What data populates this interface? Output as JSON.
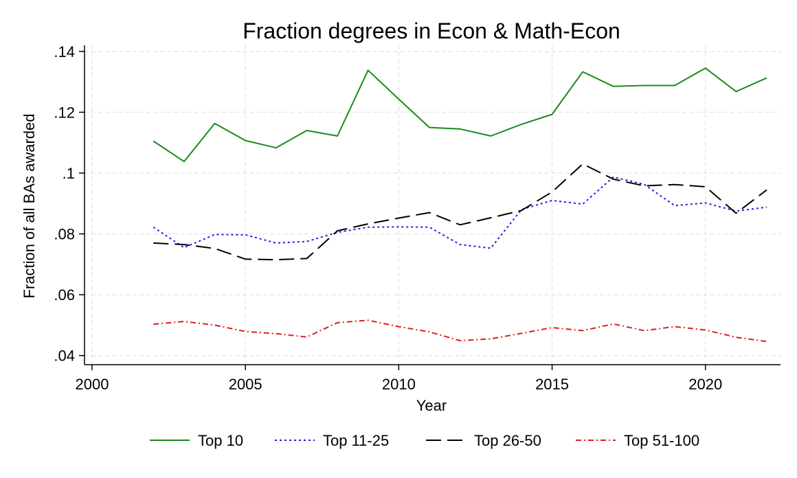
{
  "chart_data": {
    "type": "line",
    "title": "Fraction degrees in Econ & Math-Econ",
    "xlabel": "Year",
    "ylabel": "Fraction of all BAs awarded",
    "xlim": [
      2000,
      2022
    ],
    "ylim": [
      0.037,
      0.142
    ],
    "xticks": [
      {
        "value": 2000,
        "label": "2000"
      },
      {
        "value": 2005,
        "label": "2005"
      },
      {
        "value": 2010,
        "label": "2010"
      },
      {
        "value": 2015,
        "label": "2015"
      },
      {
        "value": 2020,
        "label": "2020"
      }
    ],
    "yticks": [
      {
        "value": 0.04,
        "label": ".04"
      },
      {
        "value": 0.06,
        "label": ".06"
      },
      {
        "value": 0.08,
        "label": ".08"
      },
      {
        "value": 0.1,
        "label": ".1"
      },
      {
        "value": 0.12,
        "label": ".12"
      },
      {
        "value": 0.14,
        "label": ".14"
      }
    ],
    "grid": true,
    "legend_position": "bottom",
    "x": [
      2002,
      2003,
      2004,
      2005,
      2006,
      2007,
      2008,
      2009,
      2010,
      2011,
      2012,
      2013,
      2014,
      2015,
      2016,
      2017,
      2018,
      2019,
      2020,
      2021,
      2022
    ],
    "series": [
      {
        "name": "Top 10",
        "color": "#1a8a1a",
        "dash": "solid",
        "values": [
          0.1105,
          0.1038,
          0.1163,
          0.1107,
          0.1083,
          0.114,
          0.1122,
          0.1338,
          0.1243,
          0.115,
          0.1145,
          0.1122,
          0.116,
          0.1193,
          0.1333,
          0.1285,
          0.1288,
          0.1288,
          0.1345,
          0.1268,
          0.1313
        ]
      },
      {
        "name": "Top 11-25",
        "color": "#1c1ce0",
        "dash": "dot",
        "values": [
          0.0822,
          0.0755,
          0.0798,
          0.0797,
          0.077,
          0.0775,
          0.0805,
          0.0822,
          0.0823,
          0.0822,
          0.0765,
          0.0753,
          0.088,
          0.091,
          0.0898,
          0.0987,
          0.0963,
          0.0893,
          0.0902,
          0.0875,
          0.0888
        ]
      },
      {
        "name": "Top 26-50",
        "color": "#000000",
        "dash": "longdash",
        "values": [
          0.077,
          0.0765,
          0.0752,
          0.0717,
          0.0715,
          0.0719,
          0.081,
          0.0833,
          0.0852,
          0.087,
          0.083,
          0.0853,
          0.0877,
          0.0938,
          0.103,
          0.098,
          0.0958,
          0.0962,
          0.0955,
          0.0868,
          0.0945
        ]
      },
      {
        "name": "Top 51-100",
        "color": "#e01c1c",
        "dash": "dashdot",
        "values": [
          0.0503,
          0.0512,
          0.05,
          0.0479,
          0.0472,
          0.0461,
          0.0508,
          0.0516,
          0.0495,
          0.0478,
          0.0449,
          0.0455,
          0.0473,
          0.0492,
          0.0482,
          0.0504,
          0.0482,
          0.0495,
          0.0484,
          0.046,
          0.0446
        ]
      }
    ]
  }
}
